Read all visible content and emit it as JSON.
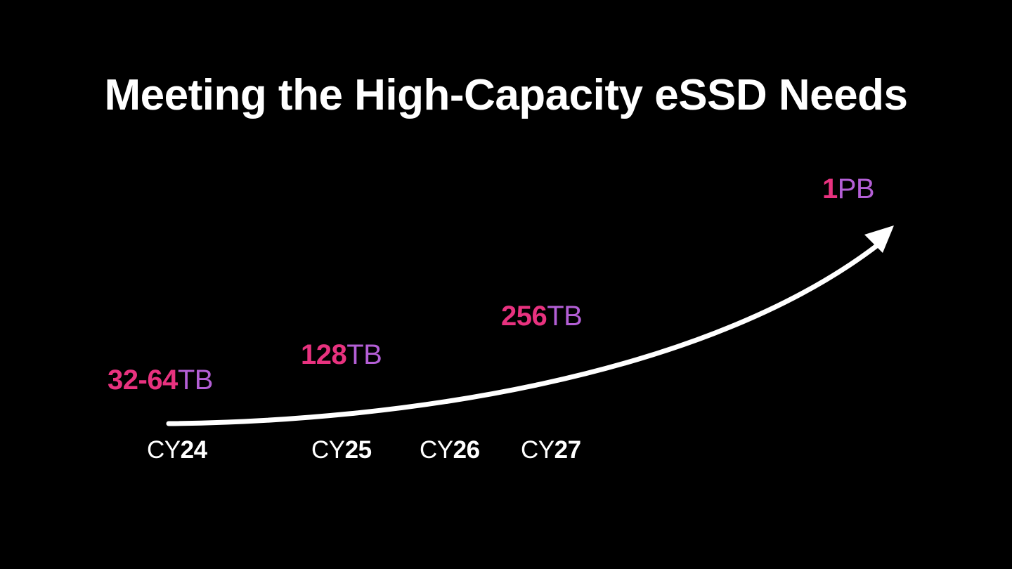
{
  "title": "Meeting the High-Capacity eSSD Needs",
  "colors": {
    "background": "#000000",
    "text": "#ffffff",
    "value_pink": "#e8327f",
    "unit_purple": "#b45fd6",
    "arrow": "#ffffff"
  },
  "capacities": [
    {
      "value": "32-64",
      "unit": "TB"
    },
    {
      "value": "128",
      "unit": "TB"
    },
    {
      "value": "256",
      "unit": "TB"
    },
    {
      "value": "1",
      "unit": "PB"
    }
  ],
  "years": [
    {
      "prefix": "CY",
      "num": "24"
    },
    {
      "prefix": "CY",
      "num": "25"
    },
    {
      "prefix": "CY",
      "num": "26"
    },
    {
      "prefix": "CY",
      "num": "27"
    }
  ]
}
